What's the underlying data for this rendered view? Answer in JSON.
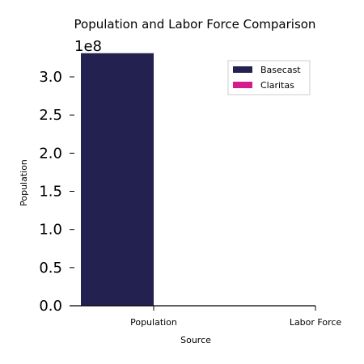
{
  "chart_data": {
    "type": "bar",
    "title": "Population and Labor Force Comparison",
    "xlabel": "Source",
    "ylabel": "Population",
    "categories": [
      "Population",
      "Labor Force"
    ],
    "series": [
      {
        "name": "Basecast",
        "color": "#22214f",
        "values": [
          331000000,
          0
        ]
      },
      {
        "name": "Claritas",
        "color": "#d41c8c",
        "values": [
          0,
          0
        ]
      }
    ],
    "ylim": [
      0,
      335000000
    ],
    "y_ticks": [
      0,
      50000000,
      100000000,
      150000000,
      200000000,
      250000000,
      300000000
    ],
    "y_tick_labels": [
      "0.0",
      "0.5",
      "1.0",
      "1.5",
      "2.0",
      "2.5",
      "3.0"
    ],
    "y_offset_label": "1e8",
    "legend_placement": "top-right",
    "grid": false
  }
}
